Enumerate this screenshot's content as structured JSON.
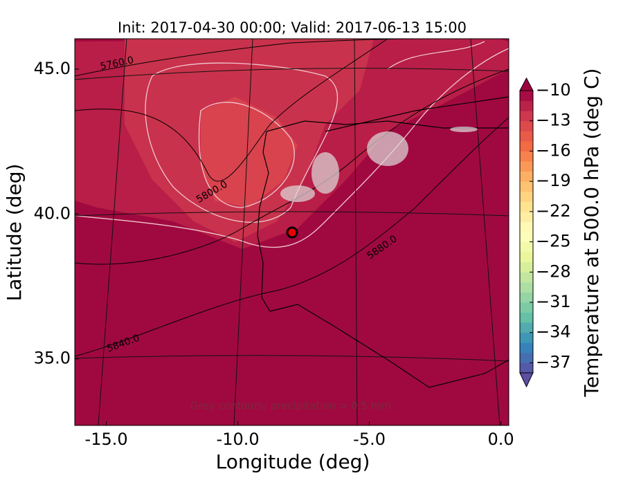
{
  "map": {
    "title": "Init: 2017-04-30 00:00; Valid: 2017-06-13 15:00",
    "xlabel": "Longitude (deg)",
    "ylabel": "Latitude (deg)",
    "xlim": [
      -16.2,
      0.3
    ],
    "ylim": [
      32.7,
      46.05
    ],
    "xticks": [
      {
        "value": -15,
        "label": "-15.0"
      },
      {
        "value": -10,
        "label": "-10.0"
      },
      {
        "value": -5,
        "label": "-5.0"
      },
      {
        "value": 0,
        "label": "0.0"
      }
    ],
    "yticks": [
      {
        "value": 45,
        "label": "45.0"
      },
      {
        "value": 40,
        "label": "40.0"
      },
      {
        "value": 35,
        "label": "35.0"
      }
    ],
    "contour_labels": [
      "5760.0",
      "5800.0",
      "5880.0",
      "5840.0"
    ],
    "annotation": "Grey contours: precipitation > 0.5 mm",
    "colorbar": {
      "label": "Temperature at 500.0 hPa (deg C)",
      "lim": [
        -38,
        -10
      ],
      "colormap": "Spectral",
      "ticks": [
        {
          "value": -10,
          "label": "−10"
        },
        {
          "value": -13,
          "label": "−13"
        },
        {
          "value": -16,
          "label": "−16"
        },
        {
          "value": -19,
          "label": "−19"
        },
        {
          "value": -22,
          "label": "−22"
        },
        {
          "value": -25,
          "label": "−25"
        },
        {
          "value": -28,
          "label": "−28"
        },
        {
          "value": -31,
          "label": "−31"
        },
        {
          "value": -34,
          "label": "−34"
        },
        {
          "value": -37,
          "label": "−37"
        }
      ]
    }
  }
}
